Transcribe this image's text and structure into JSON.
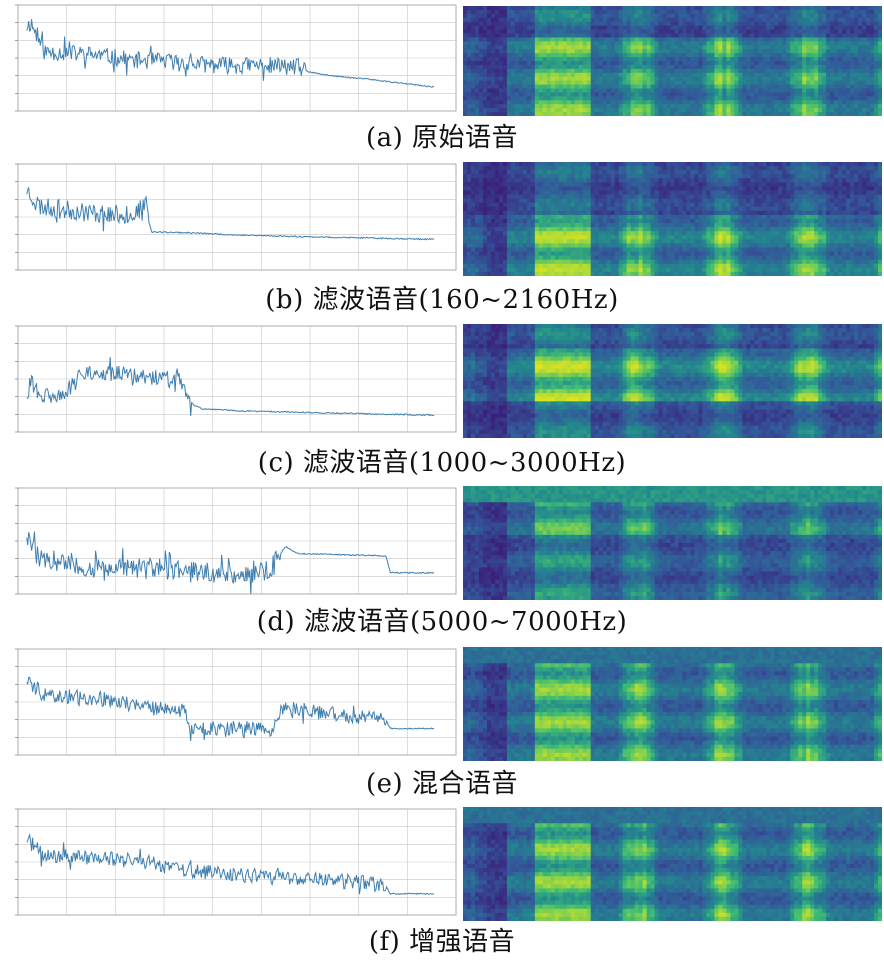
{
  "panels": [
    {
      "caption": "(a) 原始语音",
      "profile": [
        [
          0,
          0.74
        ],
        [
          0.03,
          0.83
        ],
        [
          0.06,
          0.56
        ],
        [
          0.1,
          0.55
        ],
        [
          0.18,
          0.53
        ],
        [
          0.26,
          0.48
        ],
        [
          0.34,
          0.47
        ],
        [
          0.42,
          0.44
        ],
        [
          0.5,
          0.43
        ],
        [
          0.58,
          0.43
        ],
        [
          0.64,
          0.41
        ],
        [
          0.66,
          0.37
        ],
        [
          0.72,
          0.33
        ],
        [
          0.8,
          0.3
        ],
        [
          0.88,
          0.26
        ],
        [
          0.94,
          0.23
        ]
      ],
      "noise_until": 0.66,
      "noise_amp": 0.08,
      "seed": 11
    },
    {
      "caption": "(b) 滤波语音(160~2160Hz)",
      "profile": [
        [
          0,
          0.58
        ],
        [
          0.02,
          0.76
        ],
        [
          0.05,
          0.6
        ],
        [
          0.1,
          0.57
        ],
        [
          0.2,
          0.53
        ],
        [
          0.26,
          0.52
        ],
        [
          0.29,
          0.6
        ],
        [
          0.305,
          0.36
        ],
        [
          0.4,
          0.35
        ],
        [
          0.5,
          0.33
        ],
        [
          0.7,
          0.31
        ],
        [
          0.94,
          0.29
        ]
      ],
      "noise_until": 0.3,
      "noise_amp": 0.09,
      "seed": 23
    },
    {
      "caption": "(c) 滤波语音(1000~3000Hz)",
      "profile": [
        [
          0,
          0.3
        ],
        [
          0.01,
          0.25
        ],
        [
          0.03,
          0.48
        ],
        [
          0.05,
          0.33
        ],
        [
          0.1,
          0.35
        ],
        [
          0.13,
          0.45
        ],
        [
          0.15,
          0.58
        ],
        [
          0.2,
          0.55
        ],
        [
          0.3,
          0.52
        ],
        [
          0.37,
          0.48
        ],
        [
          0.39,
          0.27
        ],
        [
          0.42,
          0.22
        ],
        [
          0.5,
          0.2
        ],
        [
          0.7,
          0.18
        ],
        [
          0.94,
          0.16
        ]
      ],
      "noise_until": 0.4,
      "noise_amp": 0.08,
      "seed": 31
    },
    {
      "caption": "(d) 滤波语音(5000~7000Hz)",
      "profile": [
        [
          0,
          0.45
        ],
        [
          0.02,
          0.58
        ],
        [
          0.05,
          0.32
        ],
        [
          0.15,
          0.25
        ],
        [
          0.3,
          0.24
        ],
        [
          0.45,
          0.2
        ],
        [
          0.52,
          0.17
        ],
        [
          0.58,
          0.25
        ],
        [
          0.61,
          0.45
        ],
        [
          0.64,
          0.38
        ],
        [
          0.75,
          0.37
        ],
        [
          0.84,
          0.36
        ],
        [
          0.85,
          0.2
        ],
        [
          0.95,
          0.2
        ]
      ],
      "noise_until": 0.6,
      "noise_amp": 0.1,
      "seed": 47
    },
    {
      "caption": "(e) 混合语音",
      "profile": [
        [
          0,
          0.6
        ],
        [
          0.02,
          0.72
        ],
        [
          0.06,
          0.56
        ],
        [
          0.15,
          0.55
        ],
        [
          0.25,
          0.5
        ],
        [
          0.35,
          0.42
        ],
        [
          0.38,
          0.42
        ],
        [
          0.39,
          0.26
        ],
        [
          0.45,
          0.25
        ],
        [
          0.55,
          0.25
        ],
        [
          0.58,
          0.24
        ],
        [
          0.6,
          0.45
        ],
        [
          0.7,
          0.4
        ],
        [
          0.8,
          0.35
        ],
        [
          0.84,
          0.33
        ],
        [
          0.85,
          0.25
        ],
        [
          0.95,
          0.25
        ]
      ],
      "noise_until": 0.84,
      "noise_amp": 0.07,
      "seed": 59
    },
    {
      "caption": "(f) 增强语音",
      "profile": [
        [
          0,
          0.65
        ],
        [
          0.02,
          0.72
        ],
        [
          0.06,
          0.55
        ],
        [
          0.15,
          0.55
        ],
        [
          0.3,
          0.5
        ],
        [
          0.38,
          0.42
        ],
        [
          0.5,
          0.38
        ],
        [
          0.6,
          0.35
        ],
        [
          0.7,
          0.33
        ],
        [
          0.8,
          0.3
        ],
        [
          0.84,
          0.28
        ],
        [
          0.85,
          0.2
        ],
        [
          0.95,
          0.2
        ]
      ],
      "noise_until": 0.84,
      "noise_amp": 0.07,
      "seed": 71
    }
  ],
  "line_color": "#3f7fb0",
  "grid_color": "#c8c8c8",
  "spectrogram_colors": [
    "#3b1f7a",
    "#33599a",
    "#23888e",
    "#3fbc73",
    "#a6d93b",
    "#e8e51a"
  ]
}
